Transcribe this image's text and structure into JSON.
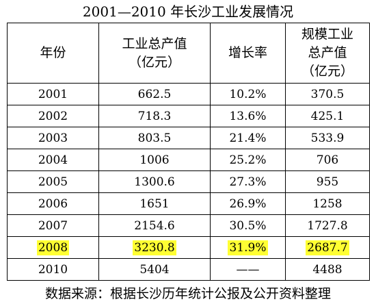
{
  "title": "2001—2010 年长沙工业发展情况",
  "table": {
    "headers": {
      "year": [
        "年份"
      ],
      "output": [
        "工业总产值",
        "（亿元）"
      ],
      "growth": [
        "增长率"
      ],
      "scale_output": [
        "规模工业",
        "总产值",
        "（亿元）"
      ]
    },
    "rows": [
      {
        "year": "2001",
        "output": "662.5",
        "growth": "10.2%",
        "scale_output": "370.5",
        "highlighted": false
      },
      {
        "year": "2002",
        "output": "718.3",
        "growth": "13.6%",
        "scale_output": "425.1",
        "highlighted": false
      },
      {
        "year": "2003",
        "output": "803.5",
        "growth": "21.4%",
        "scale_output": "533.9",
        "highlighted": false
      },
      {
        "year": "2004",
        "output": "1006",
        "growth": "25.2%",
        "scale_output": "706",
        "highlighted": false
      },
      {
        "year": "2005",
        "output": "1300.6",
        "growth": "27.3%",
        "scale_output": "955",
        "highlighted": false
      },
      {
        "year": "2006",
        "output": "1651",
        "growth": "26.9%",
        "scale_output": "1258",
        "highlighted": false
      },
      {
        "year": "2007",
        "output": "2154.6",
        "growth": "30.5%",
        "scale_output": "1727.8",
        "highlighted": false
      },
      {
        "year": "2008",
        "output": "3230.8",
        "growth": "31.9%",
        "scale_output": "2687.7",
        "highlighted": true
      },
      {
        "year": "2010",
        "output": "5404",
        "growth": "——",
        "scale_output": "4488",
        "highlighted": false
      }
    ]
  },
  "highlight_color": "#ffff33",
  "source": "数据来源：根据长沙历年统计公报及公开资料整理"
}
